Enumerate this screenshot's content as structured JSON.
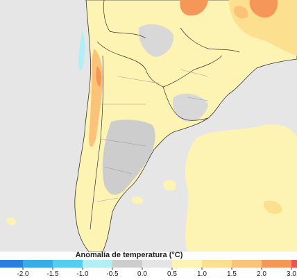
{
  "colorbar": {
    "title": "Anomalía de temperatura (°C)",
    "ticks": [
      {
        "value": -2,
        "label": "-2.0"
      },
      {
        "value": -1.5,
        "label": "-1.5"
      },
      {
        "value": -1,
        "label": "-1.0"
      },
      {
        "value": -0.5,
        "label": "-0.5"
      },
      {
        "value": 0,
        "label": "0.0"
      },
      {
        "value": 0.5,
        "label": "0.5"
      },
      {
        "value": 1,
        "label": "1.0"
      },
      {
        "value": 1.5,
        "label": "1.5"
      },
      {
        "value": 2,
        "label": "2.0"
      },
      {
        "value": 3,
        "label": "3.0"
      }
    ],
    "colors": [
      "#2a7fe0",
      "#35aee8",
      "#52cff0",
      "#b2eef6",
      "#cdcdcd",
      "#e4e4e4",
      "#fdf4b4",
      "#fde08f",
      "#fbc27a",
      "#f6975a",
      "#ee5252"
    ]
  }
}
